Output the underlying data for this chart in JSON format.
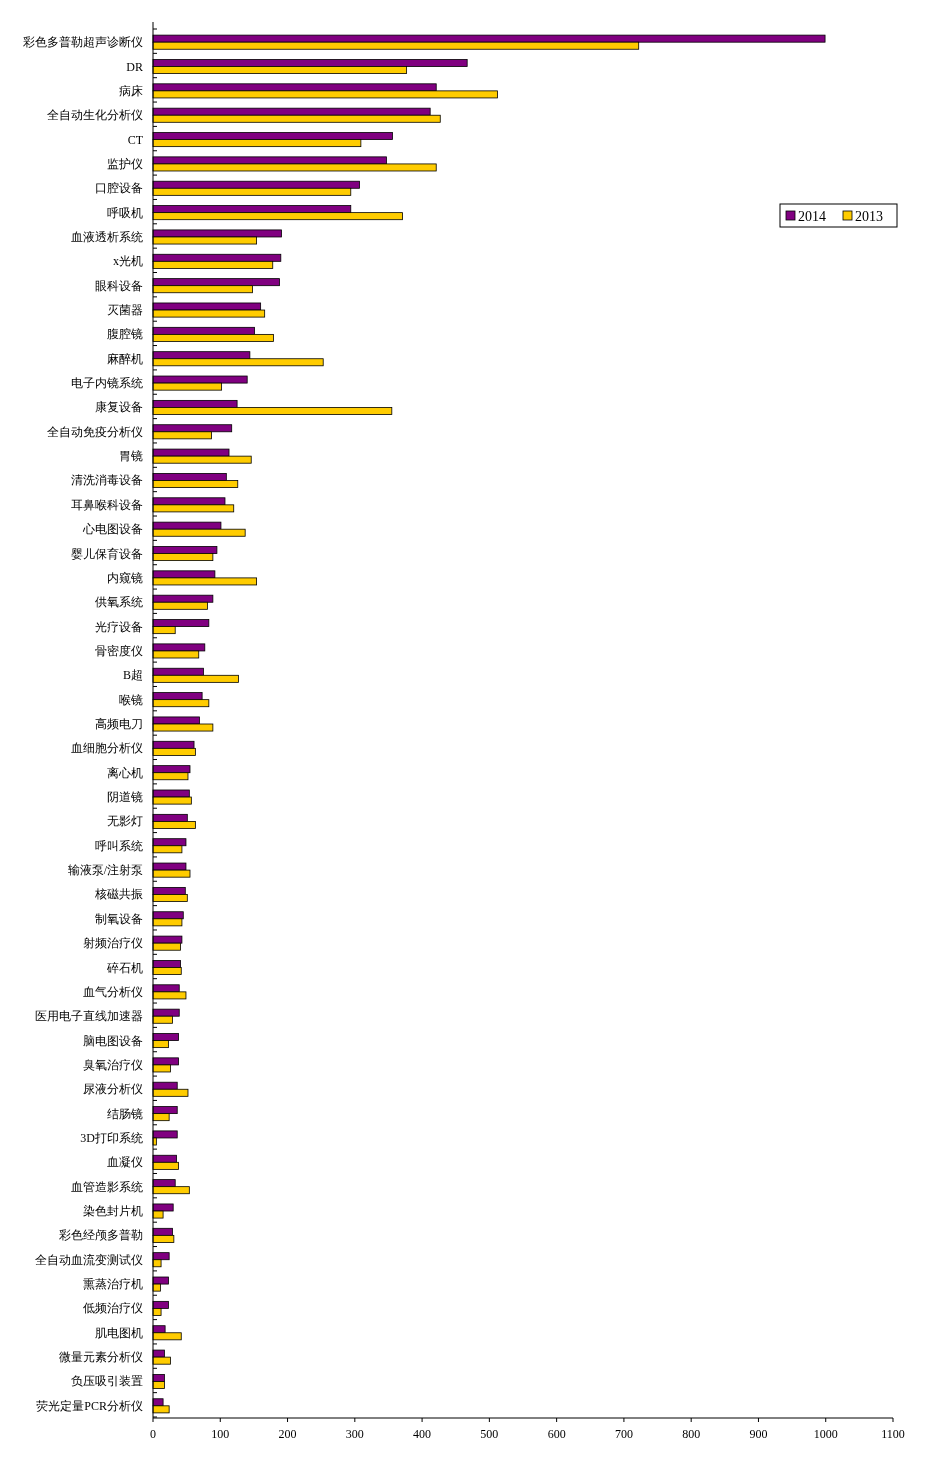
{
  "chart_data": {
    "type": "bar",
    "orientation": "horizontal",
    "categories": [
      "彩色多普勒超声诊断仪",
      "DR",
      "病床",
      "全自动生化分析仪",
      "CT",
      "监护仪",
      "口腔设备",
      "呼吸机",
      "血液透析系统",
      "x光机",
      "眼科设备",
      "灭菌器",
      "腹腔镜",
      "麻醉机",
      "电子内镜系统",
      "康复设备",
      "全自动免疫分析仪",
      "胃镜",
      "清洗消毒设备",
      "耳鼻喉科设备",
      "心电图设备",
      "婴儿保育设备",
      "内窥镜",
      "供氧系统",
      "光疗设备",
      "骨密度仪",
      "B超",
      "喉镜",
      "高频电刀",
      "血细胞分析仪",
      "离心机",
      "阴道镜",
      "无影灯",
      "呼叫系统",
      "输液泵/注射泵",
      "核磁共振",
      "制氧设备",
      "射频治疗仪",
      "碎石机",
      "血气分析仪",
      "医用电子直线加速器",
      "脑电图设备",
      "臭氧治疗仪",
      "尿液分析仪",
      "结肠镜",
      "3D打印系统",
      "血凝仪",
      "血管造影系统",
      "染色封片机",
      "彩色经颅多普勒",
      "全自动血流变测试仪",
      "熏蒸治疗机",
      "低频治疗仪",
      "肌电图机",
      "微量元素分析仪",
      "负压吸引装置",
      "荧光定量PCR分析仪"
    ],
    "series": [
      {
        "name": "2014",
        "color": "#800080",
        "values": [
          999,
          467,
          421,
          412,
          356,
          347,
          307,
          294,
          191,
          190,
          188,
          160,
          151,
          144,
          140,
          125,
          117,
          113,
          109,
          107,
          101,
          95,
          92,
          89,
          83,
          77,
          75,
          73,
          69,
          61,
          55,
          54,
          51,
          49,
          49,
          48,
          45,
          43,
          41,
          39,
          39,
          38,
          38,
          36,
          36,
          36,
          35,
          33,
          30,
          29,
          24,
          23,
          23,
          18,
          17,
          17,
          15
        ]
      },
      {
        "name": "2013",
        "color": "#ffcc00",
        "values": [
          722,
          377,
          512,
          427,
          309,
          421,
          294,
          371,
          154,
          178,
          148,
          166,
          179,
          253,
          102,
          355,
          87,
          146,
          126,
          120,
          137,
          89,
          154,
          81,
          33,
          68,
          127,
          83,
          89,
          63,
          52,
          57,
          63,
          43,
          55,
          51,
          43,
          41,
          42,
          49,
          29,
          23,
          26,
          52,
          24,
          5,
          38,
          54,
          15,
          31,
          12,
          11,
          12,
          42,
          26,
          17,
          24
        ]
      }
    ],
    "xlim": [
      0,
      1100
    ],
    "xticks": [
      0,
      100,
      200,
      300,
      400,
      500,
      600,
      700,
      800,
      900,
      1000,
      1100
    ],
    "grid": false,
    "legend": "top right"
  }
}
